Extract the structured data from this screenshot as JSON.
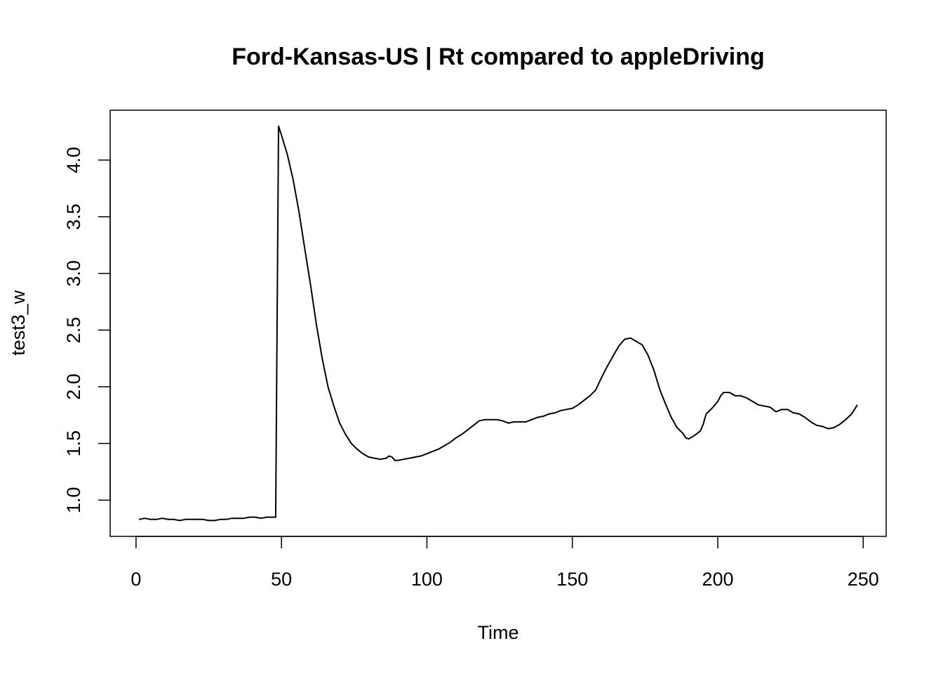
{
  "chart_data": {
    "type": "line",
    "title": "Ford-Kansas-US | Rt compared to appleDriving",
    "xlabel": "Time",
    "ylabel": "test3_w",
    "xlim": [
      -8.9,
      257.9
    ],
    "ylim": [
      0.68,
      4.44
    ],
    "x_ticks": [
      0,
      50,
      100,
      150,
      200,
      250
    ],
    "x_tick_labels": [
      "0",
      "50",
      "100",
      "150",
      "200",
      "250"
    ],
    "y_ticks": [
      1.0,
      1.5,
      2.0,
      2.5,
      3.0,
      3.5,
      4.0
    ],
    "y_tick_labels": [
      "1.0",
      "1.5",
      "2.0",
      "2.5",
      "3.0",
      "3.5",
      "4.0"
    ],
    "grid": false,
    "line_color": "#000000",
    "series": [
      {
        "x": [
          1,
          3,
          5,
          7,
          9,
          11,
          13,
          15,
          17,
          19,
          21,
          23,
          25,
          27,
          29,
          31,
          33,
          35,
          37,
          39,
          41,
          43,
          45,
          47,
          48,
          49,
          50,
          52,
          54,
          56,
          58,
          60,
          62,
          64,
          66,
          68,
          70,
          72,
          74,
          76,
          78,
          80,
          82,
          84,
          86,
          87,
          88,
          89,
          90,
          92,
          94,
          96,
          98,
          100,
          102,
          104,
          106,
          108,
          110,
          112,
          114,
          116,
          118,
          120,
          122,
          124,
          126,
          128,
          130,
          132,
          134,
          136,
          138,
          140,
          142,
          144,
          146,
          148,
          150,
          152,
          154,
          156,
          158,
          160,
          162,
          164,
          166,
          168,
          170,
          172,
          174,
          176,
          178,
          180,
          182,
          184,
          186,
          188,
          189,
          190,
          192,
          194,
          195,
          196,
          198,
          200,
          201,
          202,
          204,
          206,
          208,
          210,
          212,
          214,
          216,
          218,
          219,
          220,
          222,
          224,
          226,
          228,
          230,
          232,
          234,
          236,
          238,
          240,
          242,
          244,
          246,
          248
        ],
        "y": [
          0.83,
          0.84,
          0.83,
          0.83,
          0.84,
          0.83,
          0.83,
          0.82,
          0.83,
          0.83,
          0.83,
          0.83,
          0.82,
          0.82,
          0.83,
          0.83,
          0.84,
          0.84,
          0.84,
          0.85,
          0.85,
          0.84,
          0.85,
          0.85,
          0.85,
          4.3,
          4.22,
          4.05,
          3.83,
          3.55,
          3.22,
          2.9,
          2.55,
          2.25,
          2.0,
          1.83,
          1.68,
          1.58,
          1.5,
          1.45,
          1.41,
          1.38,
          1.37,
          1.36,
          1.37,
          1.39,
          1.38,
          1.35,
          1.35,
          1.36,
          1.37,
          1.38,
          1.39,
          1.41,
          1.43,
          1.45,
          1.48,
          1.51,
          1.55,
          1.58,
          1.62,
          1.66,
          1.7,
          1.71,
          1.71,
          1.71,
          1.7,
          1.68,
          1.69,
          1.69,
          1.69,
          1.71,
          1.73,
          1.74,
          1.76,
          1.77,
          1.79,
          1.8,
          1.81,
          1.84,
          1.88,
          1.92,
          1.97,
          2.08,
          2.18,
          2.27,
          2.36,
          2.42,
          2.43,
          2.4,
          2.37,
          2.28,
          2.15,
          1.98,
          1.85,
          1.73,
          1.64,
          1.59,
          1.55,
          1.54,
          1.57,
          1.61,
          1.67,
          1.76,
          1.81,
          1.87,
          1.92,
          1.95,
          1.95,
          1.92,
          1.92,
          1.9,
          1.87,
          1.84,
          1.83,
          1.82,
          1.8,
          1.78,
          1.8,
          1.8,
          1.77,
          1.76,
          1.73,
          1.69,
          1.66,
          1.65,
          1.63,
          1.64,
          1.67,
          1.71,
          1.76,
          1.84
        ]
      }
    ]
  }
}
